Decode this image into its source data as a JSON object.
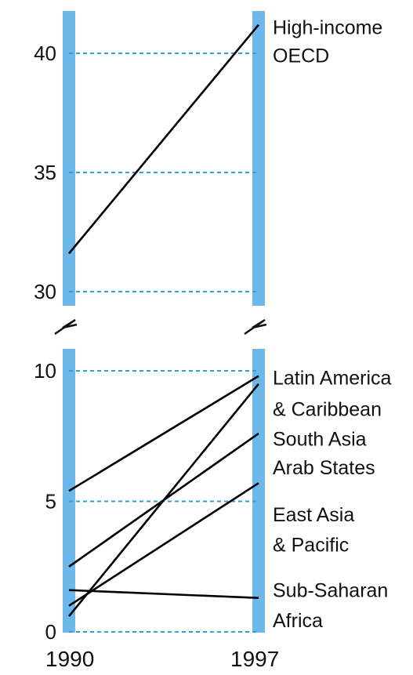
{
  "chart_data": {
    "type": "line",
    "x": [
      "1990",
      "1997"
    ],
    "axis_break": true,
    "upper_panel": {
      "ylim": [
        29.5,
        42
      ],
      "yticks": [
        "30",
        "35",
        "40"
      ],
      "series": [
        {
          "name": "High-income OECD",
          "label_lines": [
            "High-income",
            "OECD"
          ],
          "values": [
            31.6,
            41.2
          ]
        }
      ]
    },
    "lower_panel": {
      "ylim": [
        0,
        11
      ],
      "yticks": [
        "0",
        "5",
        "10"
      ],
      "series": [
        {
          "name": "Latin America & Caribbean",
          "values": [
            5.4,
            9.8
          ]
        },
        {
          "name": "South Asia",
          "values": [
            0.6,
            9.5
          ]
        },
        {
          "name": "Arab States",
          "values": [
            2.5,
            7.6
          ]
        },
        {
          "name": "East Asia & Pacific",
          "values": [
            1.0,
            5.7
          ]
        },
        {
          "name": "Sub-Saharan Africa",
          "values": [
            1.6,
            1.3
          ]
        }
      ],
      "labels": [
        {
          "text": "Latin America",
          "value": 9.75
        },
        {
          "text": "& Caribbean",
          "value": 8.55
        },
        {
          "text": "South Asia",
          "value": 7.4
        },
        {
          "text": "Arab States",
          "value": 6.3
        },
        {
          "text": "East Asia",
          "value": 4.5
        },
        {
          "text": "& Pacific",
          "value": 3.35
        },
        {
          "text": "Sub-Saharan",
          "value": 1.6
        },
        {
          "text": "Africa",
          "value": 0.45
        }
      ]
    },
    "grid": true,
    "bar_color": "#6cb8ea",
    "grid_color": "#2f9fd6",
    "line_color": "#000000"
  }
}
